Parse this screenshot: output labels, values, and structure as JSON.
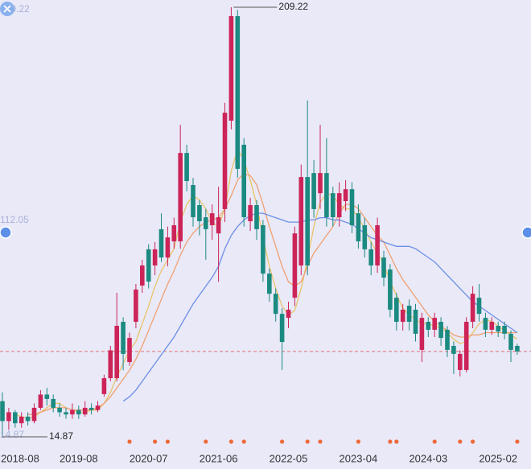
{
  "chart_data": {
    "type": "candlestick",
    "categories": [
      "2018-08",
      null,
      null,
      null,
      null,
      null,
      null,
      null,
      null,
      null,
      null,
      null,
      "2019-08",
      null,
      null,
      null,
      null,
      null,
      null,
      null,
      null,
      null,
      null,
      "2020-07",
      null,
      null,
      null,
      null,
      null,
      null,
      null,
      null,
      null,
      null,
      "2021-06",
      null,
      null,
      null,
      null,
      null,
      null,
      null,
      null,
      null,
      null,
      "2022-05",
      null,
      null,
      null,
      null,
      null,
      null,
      null,
      null,
      null,
      null,
      "2023-04",
      null,
      null,
      null,
      null,
      null,
      null,
      null,
      null,
      null,
      null,
      "2024-03",
      null,
      null,
      null,
      null,
      null,
      null,
      null,
      null,
      null,
      null,
      "2025-02",
      null,
      null,
      null
    ],
    "open": [
      31,
      22,
      26,
      21,
      24,
      22,
      28,
      34,
      32,
      28,
      26,
      25,
      27,
      25,
      28,
      27,
      34.2,
      41.4,
      41.4,
      66.9,
      48.7,
      66.9,
      83.3,
      99.7,
      92.4,
      108.8,
      96,
      103.3,
      103.3,
      143.3,
      128.8,
      119.7,
      114.2,
      110.6,
      106.9,
      117.9,
      157.9,
      205.2,
      147,
      112.4,
      119.7,
      110.6,
      88.7,
      79.6,
      70.5,
      68.7,
      77.8,
      92.4,
      132.4,
      134.2,
      125.1,
      134.2,
      125.1,
      114.2,
      121.5,
      126.9,
      116,
      110.6,
      99.7,
      92.4,
      96,
      90.6,
      77.8,
      66.9,
      74.2,
      72.4,
      54.2,
      66.9,
      63.3,
      66.9,
      63.3,
      56,
      45.1,
      45.1,
      66.9,
      77.8,
      68.7,
      63.3,
      65.1,
      65.1,
      61.5,
      56
    ],
    "close": [
      22,
      26,
      21,
      24,
      22,
      28,
      34,
      32,
      28,
      26,
      25,
      27,
      25,
      28,
      27,
      29,
      41.4,
      54,
      65.1,
      52.4,
      59.6,
      81.5,
      92.4,
      85.1,
      99.7,
      96,
      105.1,
      110.6,
      143.3,
      130.6,
      114.2,
      112.4,
      108.8,
      116,
      114.2,
      161.5,
      205.2,
      136.1,
      114.2,
      119.7,
      108.8,
      88.7,
      79.6,
      70.5,
      57.8,
      72.4,
      106.9,
      132.4,
      92.4,
      117.9,
      134.2,
      114.2,
      114.2,
      125.1,
      126.9,
      110.6,
      103.3,
      99.7,
      92.4,
      110.6,
      86.9,
      72.4,
      66.9,
      72.4,
      66.9,
      61.5,
      68.7,
      63.3,
      68.7,
      59.6,
      54.2,
      52.4,
      52.4,
      66.9,
      79.6,
      70.5,
      63.3,
      66.9,
      62.5,
      61.5,
      54.2,
      53.5
    ],
    "low": [
      14.87,
      18,
      19,
      19,
      20,
      21,
      27,
      29,
      26,
      24,
      23,
      23,
      23,
      24,
      25,
      26,
      33,
      40,
      40,
      45,
      47,
      64,
      80,
      82,
      88,
      94,
      92,
      100,
      100,
      126,
      110,
      106,
      95,
      104,
      85,
      112,
      154,
      132,
      110,
      108,
      104,
      85,
      76,
      67,
      45.1,
      64,
      74,
      88,
      88,
      114,
      118,
      110,
      110,
      110,
      117,
      107,
      100,
      96,
      88,
      89,
      83,
      69,
      63,
      63,
      63,
      58,
      48.7,
      60,
      60,
      56,
      51,
      43.3,
      42.2,
      44,
      64,
      67,
      60,
      61,
      60,
      59,
      48.7,
      52
    ],
    "high": [
      35,
      28,
      27,
      26,
      26,
      30,
      36,
      37,
      34,
      30,
      28,
      30,
      29,
      31,
      30,
      31,
      43,
      56,
      80,
      69,
      62,
      84,
      95,
      102,
      103,
      116,
      110,
      114,
      156,
      147,
      132,
      122,
      118,
      120,
      128,
      166,
      209.22,
      208,
      150,
      123,
      122,
      113,
      91,
      82,
      73,
      76,
      110,
      138,
      167,
      140,
      156,
      150,
      128,
      130,
      131,
      130,
      120,
      114,
      103,
      114,
      99,
      93,
      80,
      75,
      77,
      75,
      71,
      69,
      71,
      69,
      65,
      58,
      54,
      69,
      83,
      84,
      71,
      69,
      67,
      67,
      63,
      57
    ],
    "up_color": "#cc2458",
    "down_color": "#1b8a80",
    "ma": [
      {
        "color": "#e9c46a",
        "values": [
          null,
          null,
          25,
          24,
          23,
          24,
          26,
          28,
          30,
          30,
          28,
          27,
          26,
          26,
          27,
          27,
          30,
          35,
          42,
          48,
          54,
          58,
          66,
          74,
          83,
          90,
          95,
          100,
          112,
          120,
          124,
          122,
          118,
          112,
          110,
          118,
          135,
          145,
          140,
          131,
          120,
          105,
          92,
          82,
          74,
          70,
          72,
          82,
          95,
          110,
          121,
          125,
          124,
          120,
          118,
          118,
          114,
          109,
          103,
          98,
          93,
          85,
          79,
          73,
          70,
          68,
          66,
          66,
          65,
          64,
          62,
          59,
          57,
          58,
          62,
          66,
          68,
          67,
          65,
          63,
          61,
          59
        ]
      },
      {
        "color": "#f0a070",
        "values": [
          null,
          null,
          null,
          null,
          25,
          25,
          26,
          27,
          28,
          28,
          28,
          27,
          27,
          27,
          27,
          28,
          30,
          33,
          37,
          41,
          45,
          50,
          56,
          63,
          70,
          77,
          84,
          90,
          97,
          103,
          107,
          110,
          112,
          113,
          114,
          118,
          124,
          131,
          134,
          133,
          129,
          120,
          110,
          101,
          92,
          85,
          83,
          85,
          92,
          98,
          102,
          106,
          110,
          116,
          120,
          120,
          118,
          114,
          110,
          106,
          103,
          97,
          91,
          86,
          82,
          78,
          74,
          70,
          67,
          65,
          63,
          61,
          60,
          60,
          61,
          61,
          62,
          62,
          62,
          62,
          62,
          62
        ]
      },
      {
        "color": "#6c8fe4",
        "values": [
          null,
          null,
          null,
          null,
          null,
          null,
          null,
          null,
          null,
          null,
          null,
          null,
          null,
          null,
          null,
          null,
          null,
          null,
          null,
          31,
          33,
          36,
          40,
          44,
          48,
          52,
          56,
          60,
          65,
          70,
          75,
          79,
          83,
          87,
          92,
          100,
          106,
          110,
          113,
          115,
          116,
          116,
          115,
          114,
          113,
          112,
          112,
          112,
          113,
          113,
          114,
          114,
          113,
          113,
          112,
          111,
          109,
          107,
          105,
          104,
          103,
          102,
          101,
          101,
          101,
          100,
          98,
          96,
          94,
          91,
          88,
          85,
          82,
          79,
          76,
          74,
          72,
          70,
          68,
          66,
          64,
          62
        ]
      }
    ],
    "ylim": [
      14.87,
      209.22
    ],
    "yticks": [
      14.87,
      112.05,
      209.22
    ],
    "high_label": 209.22,
    "low_label": 14.87,
    "price_line": 53.5,
    "price_line_color": "#e07070",
    "event_markers": [
      20,
      24,
      26,
      32,
      36,
      38,
      44,
      48,
      50,
      56,
      61,
      62,
      68,
      72,
      74,
      81
    ],
    "event_color": "#ee6a3a"
  }
}
